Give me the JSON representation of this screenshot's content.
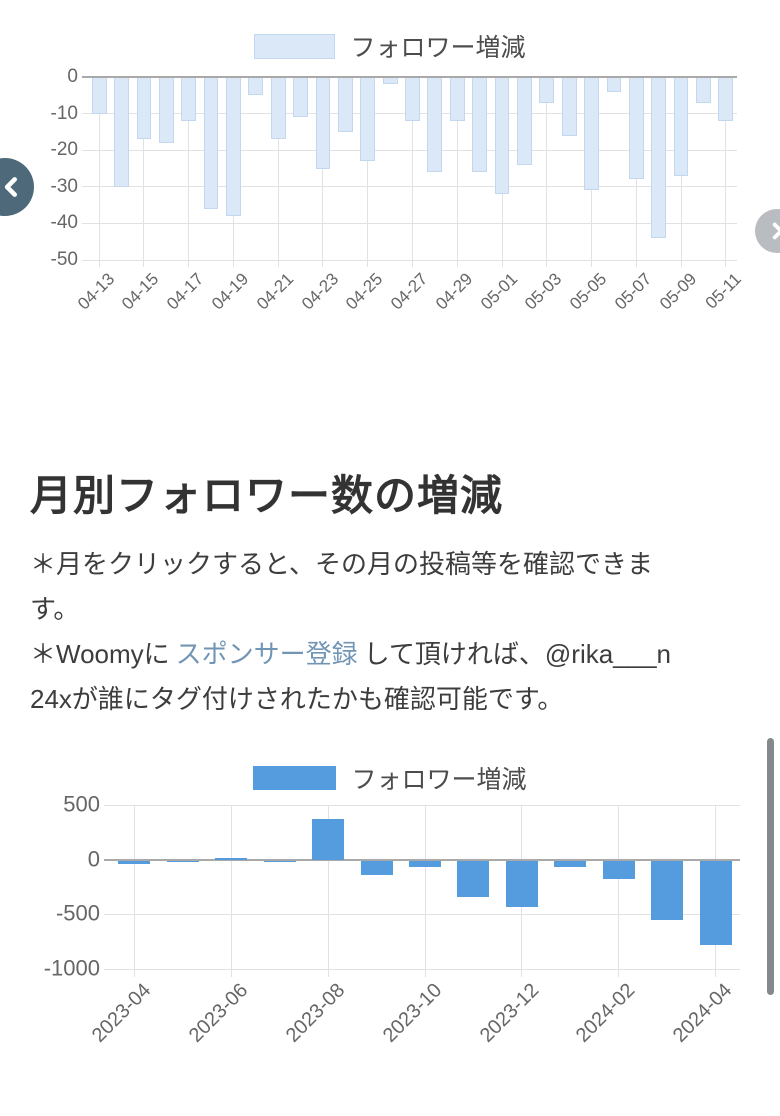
{
  "nav": {
    "prev": {
      "color": "#4e6a7a"
    },
    "next": {
      "color": "#b9bdc1"
    }
  },
  "section": {
    "heading": "月別フォロワー数の増減",
    "note1": "＊月をクリックすると、その月の投稿等を確認できます。",
    "note2": {
      "prefix": "＊Woomyに",
      "link_text": "スポンサー登録",
      "suffix": "して頂ければ、@rika___n24xが誰にタグ付けされたかも確認可能です。",
      "link_color": "#7295b5"
    }
  },
  "chart_data": [
    {
      "type": "bar",
      "legend": "フォロワー増減",
      "legend_position": "top",
      "bar_fill": "#dbe8f7",
      "bar_border": "#c3d8ef",
      "grid": true,
      "categories": [
        "04-13",
        "04-14",
        "04-15",
        "04-16",
        "04-17",
        "04-18",
        "04-19",
        "04-20",
        "04-21",
        "04-22",
        "04-23",
        "04-24",
        "04-25",
        "04-26",
        "04-27",
        "04-28",
        "04-29",
        "04-30",
        "05-01",
        "05-02",
        "05-03",
        "05-04",
        "05-05",
        "05-06",
        "05-07",
        "05-08",
        "05-09",
        "05-10",
        "05-11"
      ],
      "values": [
        -10,
        -30,
        -17,
        -18,
        -12,
        -36,
        -38,
        -5,
        -17,
        -11,
        -25,
        -15,
        -23,
        -2,
        -12,
        -26,
        -12,
        -26,
        -32,
        -24,
        -7,
        -16,
        -31,
        -4,
        -28,
        -44,
        -27,
        -7,
        -12
      ],
      "x_tick_labels": [
        "04-13",
        "04-15",
        "04-17",
        "04-19",
        "04-21",
        "04-23",
        "04-25",
        "04-27",
        "04-29",
        "05-01",
        "05-03",
        "05-05",
        "05-07",
        "05-09",
        "05-11"
      ],
      "xlabel": "",
      "ylabel": "",
      "ylim": [
        -50,
        0
      ],
      "yticks": [
        0,
        -10,
        -20,
        -30,
        -40,
        -50
      ]
    },
    {
      "type": "bar",
      "legend": "フォロワー増減",
      "legend_position": "top",
      "bar_fill": "#559cdf",
      "bar_border": "",
      "grid": true,
      "categories": [
        "2023-04",
        "2023-05",
        "2023-06",
        "2023-07",
        "2023-08",
        "2023-09",
        "2023-10",
        "2023-11",
        "2023-12",
        "2024-01",
        "2024-02",
        "2024-03",
        "2024-04"
      ],
      "values": [
        -40,
        -10,
        15,
        -10,
        375,
        -140,
        -70,
        -345,
        -430,
        -70,
        -180,
        -550,
        -780
      ],
      "x_tick_labels": [
        "2023-04",
        "2023-06",
        "2023-08",
        "2023-10",
        "2023-12",
        "2024-02",
        "2024-04"
      ],
      "xlabel": "",
      "ylabel": "",
      "ylim": [
        -1000,
        500
      ],
      "yticks": [
        500,
        0,
        -500,
        -1000
      ]
    }
  ]
}
